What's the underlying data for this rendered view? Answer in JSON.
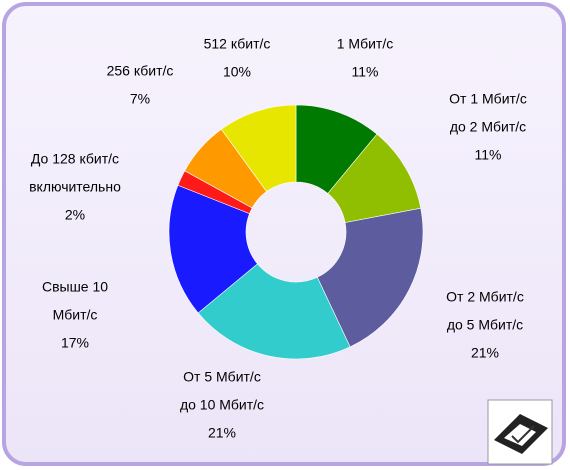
{
  "chart_data": {
    "type": "pie",
    "categories": [
      [
        "1 Мбит/с"
      ],
      [
        "От 1 Мбит/с",
        "до 2 Мбит/с"
      ],
      [
        "От 2 Мбит/с",
        "до 5 Мбит/с"
      ],
      [
        "От 5 Мбит/с",
        "до 10 Мбит/с"
      ],
      [
        "Свыше 10",
        "Мбит/с"
      ],
      [
        "До 128 кбит/с",
        "включительно"
      ],
      [
        "256 кбит/с"
      ],
      [
        "512 кбит/с"
      ]
    ],
    "values": [
      11,
      11,
      21,
      21,
      17,
      2,
      7,
      10
    ],
    "value_labels": [
      "11%",
      "11%",
      "21%",
      "21%",
      "17%",
      "2%",
      "7%",
      "10%"
    ],
    "colors": [
      "#007a00",
      "#8fbf00",
      "#5c5c9e",
      "#33cccc",
      "#1a1aff",
      "#ff1a1a",
      "#ff9900",
      "#e6e600"
    ]
  }
}
